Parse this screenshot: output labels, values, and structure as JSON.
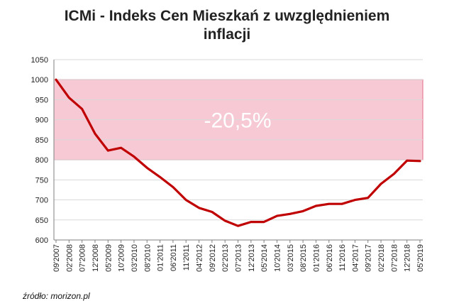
{
  "title_line1": "ICMi - Indeks Cen Mieszkań z uwzględnieniem",
  "title_line2": "inflacji",
  "source": "źródło: morizon.pl",
  "colors": {
    "line": "#c00000",
    "band_fill": "#f7c9d4",
    "band_stroke": "#e36b86",
    "annotation": "#ffffff",
    "grid": "#d9d9d9",
    "axis": "#7f7f7f"
  },
  "chart_data": {
    "type": "line",
    "title": "ICMi - Indeks Cen Mieszkań z uwzględnieniem inflacji",
    "xlabel": "",
    "ylabel": "",
    "ylim": [
      600,
      1050
    ],
    "yticks": [
      600,
      650,
      700,
      750,
      800,
      850,
      900,
      950,
      1000,
      1050
    ],
    "xtick_labels": [
      "09'2007",
      "02'2008",
      "07'2008",
      "12'2008",
      "05'2009",
      "10'2009",
      "03'2010",
      "08'2010",
      "01'2011",
      "06'2011",
      "11'2011",
      "04'2012",
      "09'2012",
      "02'2013",
      "07'2013",
      "12'2013",
      "05'2014",
      "10'2014",
      "03'2015",
      "08'2015",
      "01'2016",
      "06'2016",
      "11'2016",
      "04'2017",
      "09'2017",
      "02'2018",
      "07'2018",
      "12'2018",
      "05'2019"
    ],
    "highlight_band": {
      "y_from": 800,
      "y_to": 1000,
      "label": "-20,5%"
    },
    "grid": true,
    "legend": "none",
    "series": [
      {
        "x": [
          "09'2007",
          "02'2008",
          "07'2008",
          "12'2008",
          "05'2009",
          "10'2009",
          "03'2010",
          "08'2010",
          "01'2011",
          "06'2011",
          "11'2011",
          "04'2012",
          "09'2012",
          "02'2013",
          "07'2013",
          "12'2013",
          "05'2014",
          "10'2014",
          "03'2015",
          "08'2015",
          "01'2016",
          "06'2016",
          "11'2016",
          "04'2017",
          "09'2017",
          "02'2018",
          "07'2018",
          "12'2018",
          "05'2019"
        ],
        "values": [
          1000,
          955,
          927,
          865,
          823,
          830,
          808,
          780,
          757,
          732,
          700,
          680,
          670,
          648,
          635,
          645,
          645,
          660,
          665,
          672,
          685,
          690,
          690,
          700,
          705,
          740,
          765,
          798,
          797
        ]
      }
    ]
  }
}
